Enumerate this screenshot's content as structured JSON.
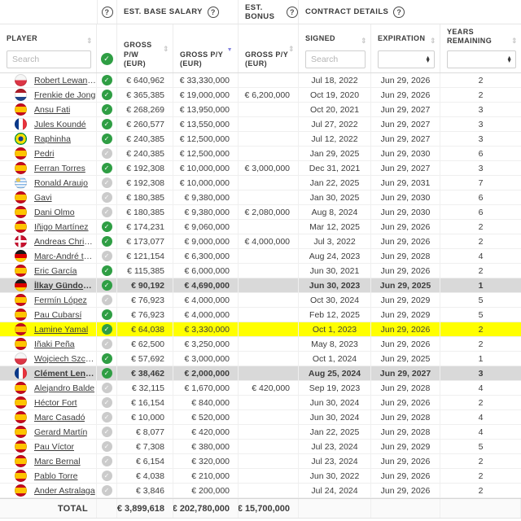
{
  "header": {
    "verified_help_icon": "?",
    "groups": {
      "base_salary": "EST. BASE SALARY",
      "bonus": "EST. BONUS",
      "contract": "CONTRACT DETAILS"
    },
    "columns": {
      "player": "PLAYER",
      "gross_pw": "GROSS\nP/W\n(EUR)",
      "gross_py": "GROSS P/Y\n(EUR)",
      "bonus_py": "GROSS P/Y\n(EUR)",
      "signed": "SIGNED",
      "expiration": "EXPIRATION",
      "years_remaining": "YEARS\nREMAINING"
    },
    "filters": {
      "player_search_placeholder": "Search",
      "signed_search_placeholder": "Search"
    },
    "sorted_column": "gross_py",
    "sort_direction": "desc"
  },
  "colors": {
    "verified_green": "#2f9e44",
    "unverified_gray": "#cbcbcb",
    "highlight_yellow": "#ffff00",
    "highlight_gray": "#d9d9d9",
    "active_sort_arrow": "#8585e0"
  },
  "rows": [
    {
      "name": "Robert Lewandow...",
      "flag": "poland",
      "verified": true,
      "gross_pw": "€ 640,962",
      "gross_py": "€ 33,330,000",
      "bonus_py": "",
      "signed": "Jul 18, 2022",
      "expiration": "Jun 29, 2026",
      "years": "2",
      "highlight": "none"
    },
    {
      "name": "Frenkie de Jong",
      "flag": "netherlands",
      "verified": true,
      "gross_pw": "€ 365,385",
      "gross_py": "€ 19,000,000",
      "bonus_py": "€ 6,200,000",
      "signed": "Oct 19, 2020",
      "expiration": "Jun 29, 2026",
      "years": "2",
      "highlight": "none"
    },
    {
      "name": "Ansu Fati",
      "flag": "spain",
      "verified": true,
      "gross_pw": "€ 268,269",
      "gross_py": "€ 13,950,000",
      "bonus_py": "",
      "signed": "Oct 20, 2021",
      "expiration": "Jun 29, 2027",
      "years": "3",
      "highlight": "none"
    },
    {
      "name": "Jules Koundé",
      "flag": "france",
      "verified": true,
      "gross_pw": "€ 260,577",
      "gross_py": "€ 13,550,000",
      "bonus_py": "",
      "signed": "Jul 27, 2022",
      "expiration": "Jun 29, 2027",
      "years": "3",
      "highlight": "none"
    },
    {
      "name": "Raphinha",
      "flag": "brazil",
      "verified": true,
      "gross_pw": "€ 240,385",
      "gross_py": "€ 12,500,000",
      "bonus_py": "",
      "signed": "Jul 12, 2022",
      "expiration": "Jun 29, 2027",
      "years": "3",
      "highlight": "none"
    },
    {
      "name": "Pedri",
      "flag": "spain",
      "verified": false,
      "gross_pw": "€ 240,385",
      "gross_py": "€ 12,500,000",
      "bonus_py": "",
      "signed": "Jan 29, 2025",
      "expiration": "Jun 29, 2030",
      "years": "6",
      "highlight": "none"
    },
    {
      "name": "Ferran Torres",
      "flag": "spain",
      "verified": true,
      "gross_pw": "€ 192,308",
      "gross_py": "€ 10,000,000",
      "bonus_py": "€ 3,000,000",
      "signed": "Dec 31, 2021",
      "expiration": "Jun 29, 2027",
      "years": "3",
      "highlight": "none"
    },
    {
      "name": "Ronald Araujo",
      "flag": "uruguay",
      "verified": false,
      "gross_pw": "€ 192,308",
      "gross_py": "€ 10,000,000",
      "bonus_py": "",
      "signed": "Jan 22, 2025",
      "expiration": "Jun 29, 2031",
      "years": "7",
      "highlight": "none"
    },
    {
      "name": "Gavi",
      "flag": "spain",
      "verified": false,
      "gross_pw": "€ 180,385",
      "gross_py": "€ 9,380,000",
      "bonus_py": "",
      "signed": "Jan 30, 2025",
      "expiration": "Jun 29, 2030",
      "years": "6",
      "highlight": "none"
    },
    {
      "name": "Dani Olmo",
      "flag": "spain",
      "verified": false,
      "gross_pw": "€ 180,385",
      "gross_py": "€ 9,380,000",
      "bonus_py": "€ 2,080,000",
      "signed": "Aug 8, 2024",
      "expiration": "Jun 29, 2030",
      "years": "6",
      "highlight": "none"
    },
    {
      "name": "Iñigo Martínez",
      "flag": "spain",
      "verified": true,
      "gross_pw": "€ 174,231",
      "gross_py": "€ 9,060,000",
      "bonus_py": "",
      "signed": "Mar 12, 2025",
      "expiration": "Jun 29, 2026",
      "years": "2",
      "highlight": "none"
    },
    {
      "name": "Andreas Christens...",
      "flag": "denmark",
      "verified": true,
      "gross_pw": "€ 173,077",
      "gross_py": "€ 9,000,000",
      "bonus_py": "€ 4,000,000",
      "signed": "Jul 3, 2022",
      "expiration": "Jun 29, 2026",
      "years": "2",
      "highlight": "none"
    },
    {
      "name": "Marc-André ter Ste...",
      "flag": "germany",
      "verified": false,
      "gross_pw": "€ 121,154",
      "gross_py": "€ 6,300,000",
      "bonus_py": "",
      "signed": "Aug 24, 2023",
      "expiration": "Jun 29, 2028",
      "years": "4",
      "highlight": "none"
    },
    {
      "name": "Eric García",
      "flag": "spain",
      "verified": true,
      "gross_pw": "€ 115,385",
      "gross_py": "€ 6,000,000",
      "bonus_py": "",
      "signed": "Jun 30, 2021",
      "expiration": "Jun 29, 2026",
      "years": "2",
      "highlight": "none"
    },
    {
      "name": "İlkay Gündoğan",
      "flag": "germany",
      "verified": true,
      "gross_pw": "€ 90,192",
      "gross_py": "€ 4,690,000",
      "bonus_py": "",
      "signed": "Jun 30, 2023",
      "expiration": "Jun 29, 2025",
      "years": "1",
      "highlight": "gray"
    },
    {
      "name": "Fermín López",
      "flag": "spain",
      "verified": false,
      "gross_pw": "€ 76,923",
      "gross_py": "€ 4,000,000",
      "bonus_py": "",
      "signed": "Oct 30, 2024",
      "expiration": "Jun 29, 2029",
      "years": "5",
      "highlight": "none"
    },
    {
      "name": "Pau Cubarsí",
      "flag": "spain",
      "verified": true,
      "gross_pw": "€ 76,923",
      "gross_py": "€ 4,000,000",
      "bonus_py": "",
      "signed": "Feb 12, 2025",
      "expiration": "Jun 29, 2029",
      "years": "5",
      "highlight": "none"
    },
    {
      "name": "Lamine Yamal",
      "flag": "spain",
      "verified": true,
      "gross_pw": "€ 64,038",
      "gross_py": "€ 3,330,000",
      "bonus_py": "",
      "signed": "Oct 1, 2023",
      "expiration": "Jun 29, 2026",
      "years": "2",
      "highlight": "yellow"
    },
    {
      "name": "Iñaki Peña",
      "flag": "spain",
      "verified": false,
      "gross_pw": "€ 62,500",
      "gross_py": "€ 3,250,000",
      "bonus_py": "",
      "signed": "May 8, 2023",
      "expiration": "Jun 29, 2026",
      "years": "2",
      "highlight": "none"
    },
    {
      "name": "Wojciech Szczesny",
      "flag": "poland",
      "verified": true,
      "gross_pw": "€ 57,692",
      "gross_py": "€ 3,000,000",
      "bonus_py": "",
      "signed": "Oct 1, 2024",
      "expiration": "Jun 29, 2025",
      "years": "1",
      "highlight": "none"
    },
    {
      "name": "Clément Lenglet",
      "flag": "france",
      "verified": true,
      "gross_pw": "€ 38,462",
      "gross_py": "€ 2,000,000",
      "bonus_py": "",
      "signed": "Aug 25, 2024",
      "expiration": "Jun 29, 2027",
      "years": "3",
      "highlight": "gray"
    },
    {
      "name": "Alejandro Balde",
      "flag": "spain",
      "verified": false,
      "gross_pw": "€ 32,115",
      "gross_py": "€ 1,670,000",
      "bonus_py": "€ 420,000",
      "signed": "Sep 19, 2023",
      "expiration": "Jun 29, 2028",
      "years": "4",
      "highlight": "none"
    },
    {
      "name": "Héctor Fort",
      "flag": "spain",
      "verified": false,
      "gross_pw": "€ 16,154",
      "gross_py": "€ 840,000",
      "bonus_py": "",
      "signed": "Jun 30, 2024",
      "expiration": "Jun 29, 2026",
      "years": "2",
      "highlight": "none"
    },
    {
      "name": "Marc Casadó",
      "flag": "spain",
      "verified": false,
      "gross_pw": "€ 10,000",
      "gross_py": "€ 520,000",
      "bonus_py": "",
      "signed": "Jun 30, 2024",
      "expiration": "Jun 29, 2028",
      "years": "4",
      "highlight": "none"
    },
    {
      "name": "Gerard Martín",
      "flag": "spain",
      "verified": false,
      "gross_pw": "€ 8,077",
      "gross_py": "€ 420,000",
      "bonus_py": "",
      "signed": "Jan 22, 2025",
      "expiration": "Jun 29, 2028",
      "years": "4",
      "highlight": "none"
    },
    {
      "name": "Pau Víctor",
      "flag": "spain",
      "verified": false,
      "gross_pw": "€ 7,308",
      "gross_py": "€ 380,000",
      "bonus_py": "",
      "signed": "Jul 23, 2024",
      "expiration": "Jun 29, 2029",
      "years": "5",
      "highlight": "none"
    },
    {
      "name": "Marc Bernal",
      "flag": "spain",
      "verified": false,
      "gross_pw": "€ 6,154",
      "gross_py": "€ 320,000",
      "bonus_py": "",
      "signed": "Jul 23, 2024",
      "expiration": "Jun 29, 2026",
      "years": "2",
      "highlight": "none"
    },
    {
      "name": "Pablo Torre",
      "flag": "spain",
      "verified": false,
      "gross_pw": "€ 4,038",
      "gross_py": "€ 210,000",
      "bonus_py": "",
      "signed": "Jun 30, 2022",
      "expiration": "Jun 29, 2026",
      "years": "2",
      "highlight": "none"
    },
    {
      "name": "Ander Astralaga",
      "flag": "spain",
      "verified": false,
      "gross_pw": "€ 3,846",
      "gross_py": "€ 200,000",
      "bonus_py": "",
      "signed": "Jul 24, 2024",
      "expiration": "Jun 29, 2026",
      "years": "2",
      "highlight": "none"
    }
  ],
  "total": {
    "label": "TOTAL",
    "gross_pw": "€ 3,899,618",
    "gross_py": "€ 202,780,000",
    "bonus_py": "€ 15,700,000"
  }
}
